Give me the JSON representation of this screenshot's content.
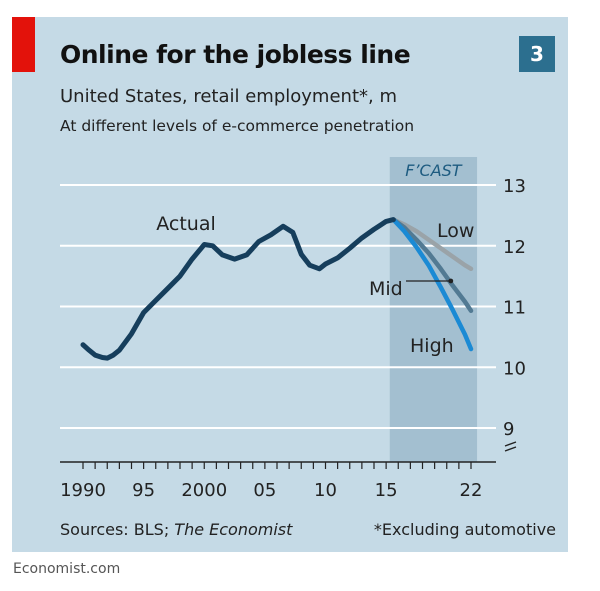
{
  "header": {
    "title": "Online for the jobless line",
    "subtitle": "United States, retail employment*, m",
    "subtitle2": "At different levels of e-commerce penetration",
    "chart_number": "3"
  },
  "footer": {
    "sources_prefix": "Sources: BLS; ",
    "sources_italic": "The Economist",
    "footnote": "*Excluding automotive",
    "publisher": "Economist.com"
  },
  "colors": {
    "panel": "#c5dae6",
    "forecast_band": "#a3bfd0",
    "actual": "#163e5c",
    "low": "#9aa3a8",
    "mid": "#527a93",
    "high": "#1b8ad4",
    "accent": "#e3120b"
  },
  "chart_data": {
    "type": "line",
    "title": "Online for the jobless line",
    "subtitle": "United States, retail employment*, m",
    "ylim": [
      9,
      13
    ],
    "y_ticks": [
      9,
      10,
      11,
      12,
      13
    ],
    "x_tick_labels": [
      {
        "year": 1990,
        "label": "1990"
      },
      {
        "year": 1995,
        "label": "95"
      },
      {
        "year": 2000,
        "label": "2000"
      },
      {
        "year": 2005,
        "label": "05"
      },
      {
        "year": 2010,
        "label": "10"
      },
      {
        "year": 2015,
        "label": "15"
      },
      {
        "year": 2022,
        "label": "22"
      }
    ],
    "grid": true,
    "forecast_band": {
      "label": "F’CAST",
      "from": 2015.3,
      "to": 2022.5
    },
    "series": [
      {
        "name": "Actual",
        "x": [
          1990,
          1990.5,
          1991,
          1991.6,
          1992,
          1992.5,
          1993,
          1994,
          1995,
          1996,
          1997,
          1998,
          1999,
          2000,
          2000.7,
          2001.5,
          2002.5,
          2003.5,
          2004.5,
          2005.5,
          2006.5,
          2007.3,
          2008,
          2008.7,
          2009.5,
          2010,
          2011,
          2012,
          2013,
          2014,
          2015,
          2015.6
        ],
        "values": [
          10.37,
          10.28,
          10.2,
          10.16,
          10.15,
          10.2,
          10.28,
          10.55,
          10.9,
          11.1,
          11.3,
          11.5,
          11.78,
          12.02,
          12.0,
          11.85,
          11.78,
          11.85,
          12.07,
          12.18,
          12.32,
          12.22,
          11.86,
          11.68,
          11.62,
          11.7,
          11.8,
          11.96,
          12.13,
          12.27,
          12.4,
          12.43
        ]
      },
      {
        "name": "Low",
        "x": [
          2015.6,
          2016.5,
          2017.5,
          2018.5,
          2019.5,
          2020.5,
          2021.5,
          2022
        ],
        "values": [
          12.43,
          12.35,
          12.24,
          12.1,
          11.96,
          11.82,
          11.68,
          11.62
        ]
      },
      {
        "name": "Mid",
        "x": [
          2015.6,
          2016.5,
          2017.5,
          2018.5,
          2019.5,
          2020.5,
          2021.5,
          2022
        ],
        "values": [
          12.43,
          12.3,
          12.1,
          11.88,
          11.62,
          11.34,
          11.08,
          10.93
        ]
      },
      {
        "name": "High",
        "x": [
          2015.6,
          2016.5,
          2017.5,
          2018.5,
          2019.5,
          2020.5,
          2021.5,
          2022
        ],
        "values": [
          12.43,
          12.24,
          11.98,
          11.68,
          11.32,
          10.94,
          10.54,
          10.3
        ]
      }
    ],
    "annotations": [
      {
        "text": "Actual",
        "series": "Actual"
      },
      {
        "text": "Low",
        "series": "Low"
      },
      {
        "text": "Mid",
        "series": "Mid"
      },
      {
        "text": "High",
        "series": "High"
      }
    ]
  }
}
